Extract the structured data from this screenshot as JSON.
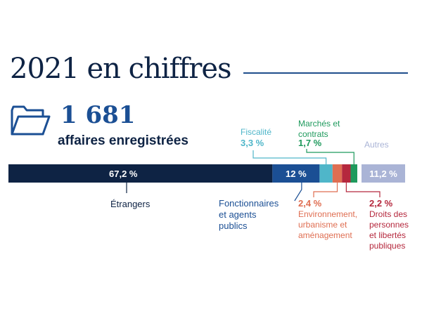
{
  "title": "2021 en chiffres",
  "summary": {
    "count": "1 681",
    "label": "affaires enregistrées",
    "icon": "folder-icon"
  },
  "chart_data": {
    "type": "bar",
    "orientation": "stacked-horizontal",
    "unit": "%",
    "segments": [
      {
        "name": "Étrangers",
        "value": 67.2,
        "value_label": "67,2 %",
        "color": "#0e2344"
      },
      {
        "name": "Fonctionnaires et agents publics",
        "value": 12,
        "value_label": "12 %",
        "color": "#1b4f94"
      },
      {
        "name": "Fiscalité",
        "value": 3.3,
        "value_label": "3,3 %",
        "color": "#4fb6c9"
      },
      {
        "name": "Environnement, urbanisme et aménagement",
        "value": 2.4,
        "value_label": "2,4 %",
        "color": "#df6e52"
      },
      {
        "name": "Droits des personnes et libertés publiques",
        "value": 2.2,
        "value_label": "2,2 %",
        "color": "#b5283d"
      },
      {
        "name": "Marchés et contrats",
        "value": 1.7,
        "value_label": "1,7 %",
        "color": "#1f9a5d"
      },
      {
        "name": "Autres",
        "value": 11.2,
        "value_label": "11,2 %",
        "color": "#aab4d6"
      }
    ]
  }
}
